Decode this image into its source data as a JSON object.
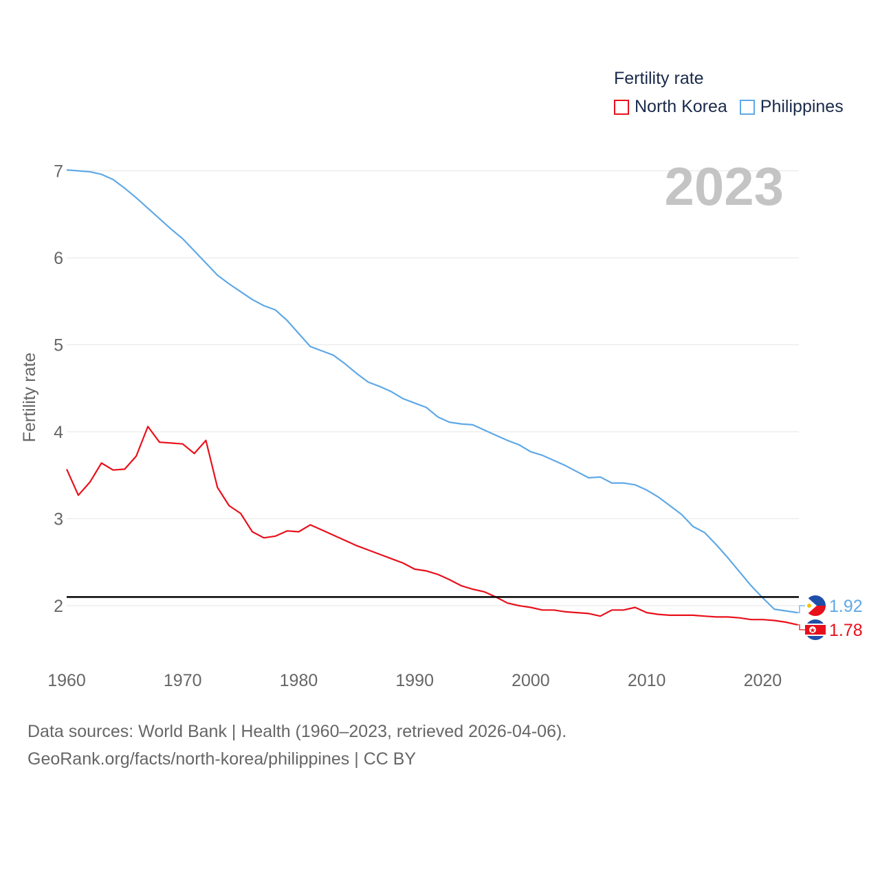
{
  "chart_data": {
    "type": "line",
    "title": "Fertility rate",
    "ylabel": "Fertility rate",
    "xlabel": "",
    "current_year": "2023",
    "xlim": [
      1960,
      2023
    ],
    "ylim": [
      1.5,
      7.2
    ],
    "x_ticks": [
      1960,
      1970,
      1980,
      1990,
      2000,
      2010,
      2020
    ],
    "y_ticks": [
      2,
      3,
      4,
      5,
      6,
      7
    ],
    "reference_line": 2.1,
    "x": [
      1960,
      1961,
      1962,
      1963,
      1964,
      1965,
      1966,
      1967,
      1968,
      1969,
      1970,
      1971,
      1972,
      1973,
      1974,
      1975,
      1976,
      1977,
      1978,
      1979,
      1980,
      1981,
      1982,
      1983,
      1984,
      1985,
      1986,
      1987,
      1988,
      1989,
      1990,
      1991,
      1992,
      1993,
      1994,
      1995,
      1996,
      1997,
      1998,
      1999,
      2000,
      2001,
      2002,
      2003,
      2004,
      2005,
      2006,
      2007,
      2008,
      2009,
      2010,
      2011,
      2012,
      2013,
      2014,
      2015,
      2016,
      2017,
      2018,
      2019,
      2020,
      2021,
      2022,
      2023
    ],
    "series": [
      {
        "name": "North Korea",
        "color": "#e8101b",
        "end_label": "1.78",
        "values": [
          3.57,
          3.27,
          3.42,
          3.64,
          3.56,
          3.57,
          3.72,
          4.06,
          3.88,
          3.87,
          3.86,
          3.75,
          3.9,
          3.36,
          3.15,
          3.06,
          2.85,
          2.78,
          2.8,
          2.86,
          2.85,
          2.93,
          2.87,
          2.81,
          2.75,
          2.69,
          2.64,
          2.59,
          2.54,
          2.49,
          2.42,
          2.4,
          2.36,
          2.3,
          2.23,
          2.19,
          2.16,
          2.1,
          2.03,
          2.0,
          1.98,
          1.95,
          1.95,
          1.93,
          1.92,
          1.91,
          1.88,
          1.95,
          1.95,
          1.98,
          1.92,
          1.9,
          1.89,
          1.89,
          1.89,
          1.88,
          1.87,
          1.87,
          1.86,
          1.84,
          1.84,
          1.83,
          1.81,
          1.78
        ]
      },
      {
        "name": "Philippines",
        "color": "#5ea8e6",
        "end_label": "1.92",
        "values": [
          7.01,
          7.0,
          6.99,
          6.96,
          6.9,
          6.8,
          6.69,
          6.57,
          6.45,
          6.33,
          6.22,
          6.08,
          5.94,
          5.8,
          5.7,
          5.61,
          5.52,
          5.45,
          5.4,
          5.28,
          5.13,
          4.98,
          4.93,
          4.88,
          4.78,
          4.67,
          4.57,
          4.52,
          4.46,
          4.38,
          4.33,
          4.28,
          4.17,
          4.11,
          4.09,
          4.08,
          4.02,
          3.96,
          3.9,
          3.85,
          3.77,
          3.73,
          3.67,
          3.61,
          3.54,
          3.47,
          3.48,
          3.41,
          3.41,
          3.39,
          3.33,
          3.25,
          3.15,
          3.05,
          2.91,
          2.84,
          2.7,
          2.55,
          2.39,
          2.23,
          2.09,
          1.96,
          1.94,
          1.92
        ]
      }
    ]
  },
  "footer": {
    "line1": "Data sources: World Bank | Health (1960–2023, retrieved 2026-04-06).",
    "line2": "GeoRank.org/facts/north-korea/philippines | CC BY"
  }
}
